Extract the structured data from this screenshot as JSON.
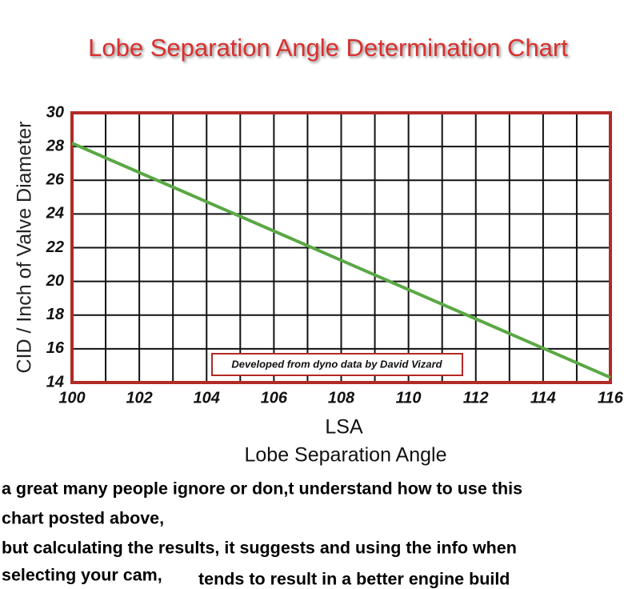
{
  "chart_data": {
    "type": "line",
    "title": "Lobe Separation Angle Determination Chart",
    "x_label": "LSA",
    "x_sublabel": "Lobe Separation Angle",
    "y_label": "CID / Inch of Valve Diameter",
    "annotation": "Developed from dyno data by David Vizard",
    "x": [
      100,
      116
    ],
    "series": [
      {
        "color": "#5aa844",
        "values": [
          28.2,
          14.3
        ]
      }
    ],
    "xlim": [
      100,
      116
    ],
    "ylim": [
      14,
      30
    ],
    "xticks": [
      100,
      102,
      104,
      106,
      108,
      110,
      112,
      114,
      116
    ],
    "x_minor_ticks": [
      101,
      103,
      105,
      107,
      109,
      111,
      113,
      115
    ],
    "yticks": [
      14,
      16,
      18,
      20,
      22,
      24,
      26,
      28,
      30
    ],
    "grid": true,
    "frame_color": "#b22a26"
  },
  "caption_lines": [
    "a great many people ignore or don,t understand how to use this",
    "chart posted above,",
    "but calculating the results, it suggests and using the info when",
    "selecting your cam,",
    "tends to result in a better engine build"
  ]
}
